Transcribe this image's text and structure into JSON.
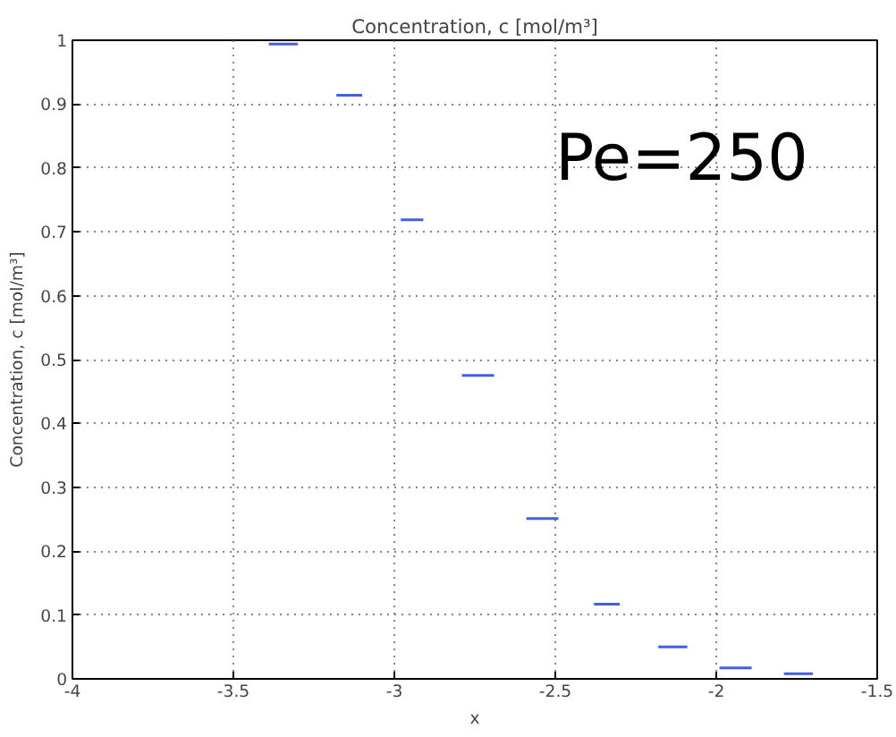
{
  "chart_data": {
    "type": "line",
    "title": "Concentration, c [mol/m³]",
    "xlabel": "x",
    "ylabel": "Concentration, c [mol/m³]",
    "x": [
      -3.39,
      -3.3,
      null,
      -3.18,
      -3.1,
      null,
      -2.98,
      -2.91,
      null,
      -2.79,
      -2.69,
      null,
      -2.59,
      -2.49,
      null,
      -2.38,
      -2.3,
      null,
      -2.18,
      -2.09,
      null,
      -1.99,
      -1.89,
      null,
      -1.79,
      -1.7
    ],
    "series": [
      {
        "color": "#4060e0",
        "values": [
          0.994,
          0.994,
          null,
          0.914,
          0.914,
          null,
          0.719,
          0.719,
          null,
          0.475,
          0.475,
          null,
          0.251,
          0.251,
          null,
          0.117,
          0.117,
          null,
          0.05,
          0.05,
          null,
          0.017,
          0.017,
          null,
          0.008,
          0.008
        ]
      }
    ],
    "xlim": [
      -4,
      -1.5
    ],
    "xticks": [
      -4,
      -3.5,
      -3,
      -2.5,
      -2,
      -1.5
    ],
    "ylim": [
      0,
      1
    ],
    "yticks": [
      0,
      0.1,
      0.2,
      0.3,
      0.4,
      0.5,
      0.6,
      0.7,
      0.8,
      0.9,
      1
    ],
    "annotations": [
      "Pe=250"
    ],
    "grid": true,
    "marker": "none",
    "line_style": "solid"
  }
}
